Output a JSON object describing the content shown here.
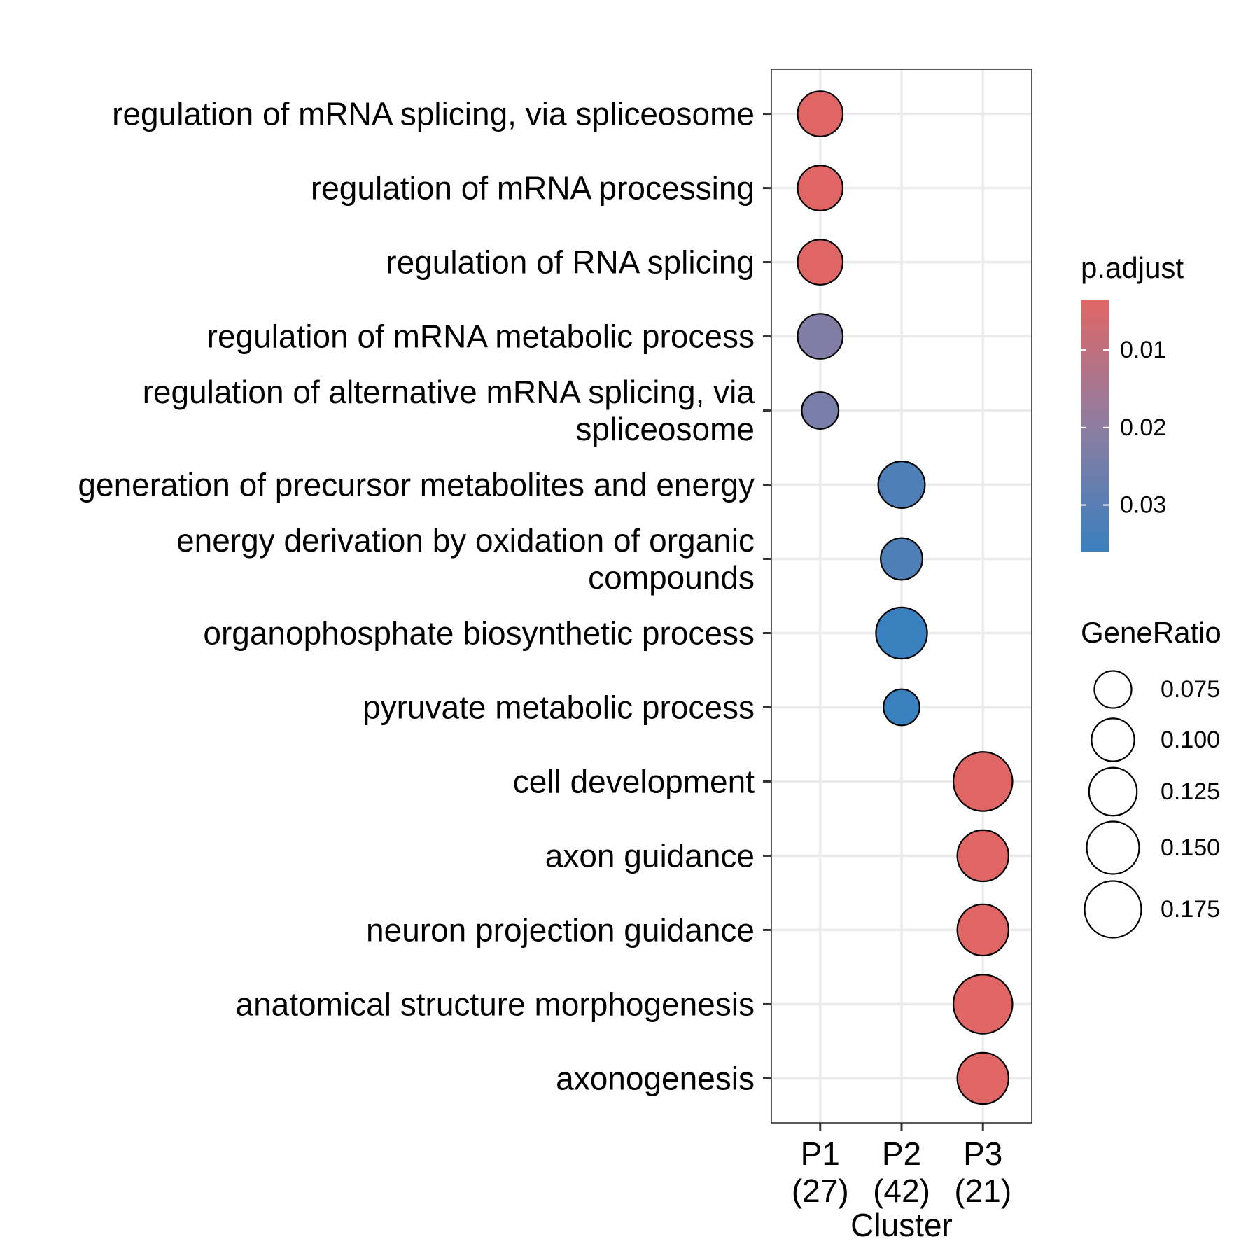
{
  "chart_data": {
    "type": "scatter",
    "xlabel": "Cluster",
    "x_categories": [
      {
        "name": "P1",
        "count": "(27)"
      },
      {
        "name": "P2",
        "count": "(42)"
      },
      {
        "name": "P3",
        "count": "(21)"
      }
    ],
    "y_categories": [
      {
        "label": [
          "regulation of mRNA splicing, via spliceosome"
        ]
      },
      {
        "label": [
          "regulation of mRNA processing"
        ]
      },
      {
        "label": [
          "regulation of RNA splicing"
        ]
      },
      {
        "label": [
          "regulation of mRNA metabolic process"
        ]
      },
      {
        "label": [
          "regulation of alternative mRNA splicing, via",
          "spliceosome"
        ]
      },
      {
        "label": [
          "generation of precursor metabolites and energy"
        ]
      },
      {
        "label": [
          "energy derivation by oxidation of organic",
          "compounds"
        ]
      },
      {
        "label": [
          "organophosphate biosynthetic process"
        ]
      },
      {
        "label": [
          "pyruvate metabolic process"
        ]
      },
      {
        "label": [
          "cell development"
        ]
      },
      {
        "label": [
          "axon guidance"
        ]
      },
      {
        "label": [
          "neuron projection guidance"
        ]
      },
      {
        "label": [
          "anatomical structure morphogenesis"
        ]
      },
      {
        "label": [
          "axonogenesis"
        ]
      }
    ],
    "points": [
      {
        "cluster": "P1",
        "term": 0,
        "gene_ratio": 0.111,
        "p_adjust": 0.0035
      },
      {
        "cluster": "P1",
        "term": 1,
        "gene_ratio": 0.111,
        "p_adjust": 0.0035
      },
      {
        "cluster": "P1",
        "term": 2,
        "gene_ratio": 0.111,
        "p_adjust": 0.0035
      },
      {
        "cluster": "P1",
        "term": 3,
        "gene_ratio": 0.111,
        "p_adjust": 0.022
      },
      {
        "cluster": "P1",
        "term": 4,
        "gene_ratio": 0.074,
        "p_adjust": 0.024
      },
      {
        "cluster": "P2",
        "term": 5,
        "gene_ratio": 0.119,
        "p_adjust": 0.032
      },
      {
        "cluster": "P2",
        "term": 6,
        "gene_ratio": 0.095,
        "p_adjust": 0.032
      },
      {
        "cluster": "P2",
        "term": 7,
        "gene_ratio": 0.143,
        "p_adjust": 0.036
      },
      {
        "cluster": "P2",
        "term": 8,
        "gene_ratio": 0.071,
        "p_adjust": 0.036
      },
      {
        "cluster": "P3",
        "term": 9,
        "gene_ratio": 0.19,
        "p_adjust": 0.0035
      },
      {
        "cluster": "P3",
        "term": 10,
        "gene_ratio": 0.143,
        "p_adjust": 0.0035
      },
      {
        "cluster": "P3",
        "term": 11,
        "gene_ratio": 0.143,
        "p_adjust": 0.0035
      },
      {
        "cluster": "P3",
        "term": 12,
        "gene_ratio": 0.19,
        "p_adjust": 0.0035
      },
      {
        "cluster": "P3",
        "term": 13,
        "gene_ratio": 0.143,
        "p_adjust": 0.0035
      }
    ],
    "color_legend": {
      "title": "p.adjust",
      "range": [
        0.0035,
        0.036
      ],
      "ticks": [
        0.01,
        0.02,
        0.03
      ],
      "tick_labels": [
        "0.01",
        "0.02",
        "0.03"
      ],
      "low_color": "#E06666",
      "mid_color": "#8E7DA0",
      "high_color": "#3A7FBE"
    },
    "size_legend": {
      "title": "GeneRatio",
      "values": [
        0.075,
        0.1,
        0.125,
        0.15,
        0.175
      ],
      "labels": [
        "0.075",
        "0.100",
        "0.125",
        "0.150",
        "0.175"
      ]
    },
    "grid": true,
    "legend_position": "right"
  }
}
